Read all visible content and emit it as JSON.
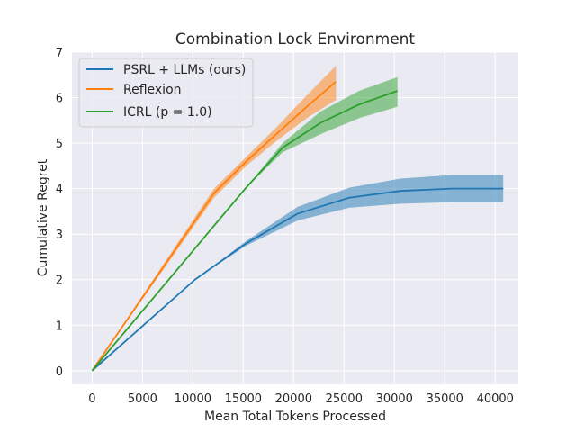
{
  "chart_data": {
    "type": "line",
    "title": "Combination Lock Environment",
    "xlabel": "Mean Total Tokens Processed",
    "ylabel": "Cumulative Regret",
    "xlim": [
      -2000,
      42300
    ],
    "ylim": [
      -0.3,
      7.0
    ],
    "xticks": [
      0,
      5000,
      10000,
      15000,
      20000,
      25000,
      30000,
      35000,
      40000
    ],
    "yticks": [
      0,
      1,
      2,
      3,
      4,
      5,
      6,
      7
    ],
    "grid": true,
    "legend_position": "top-left",
    "series": [
      {
        "name": "PSRL + LLMs (ours)",
        "color": "#1f77b4",
        "x": [
          0,
          10200,
          15300,
          20400,
          25500,
          30600,
          35700,
          40800
        ],
        "y": [
          0,
          2.0,
          2.8,
          3.45,
          3.8,
          3.95,
          4.0,
          4.0
        ],
        "lower": [
          0,
          2.0,
          2.75,
          3.3,
          3.58,
          3.67,
          3.7,
          3.7
        ],
        "upper": [
          0,
          2.0,
          2.85,
          3.6,
          4.02,
          4.22,
          4.3,
          4.3
        ]
      },
      {
        "name": "Reflexion",
        "color": "#ff7f0e",
        "x": [
          0,
          12100,
          15300,
          18300,
          21300,
          24200
        ],
        "y": [
          0,
          3.9,
          4.6,
          5.2,
          5.8,
          6.35
        ],
        "lower": [
          0,
          3.8,
          4.5,
          5.05,
          5.55,
          5.95
        ],
        "upper": [
          0,
          4.0,
          4.7,
          5.35,
          6.05,
          6.7
        ]
      },
      {
        "name": "ICRL ($p = 1.0$)",
        "color": "#2ca02c",
        "x": [
          0,
          15200,
          18900,
          22700,
          26500,
          30300
        ],
        "y": [
          0,
          4.0,
          4.9,
          5.45,
          5.85,
          6.15
        ],
        "lower": [
          0,
          4.0,
          4.8,
          5.2,
          5.55,
          5.8
        ],
        "upper": [
          0,
          4.0,
          5.0,
          5.7,
          6.15,
          6.45
        ]
      }
    ],
    "legend_labels": [
      "PSRL + LLMs (ours)",
      "Reflexion",
      "ICRL (p = 1.0)"
    ]
  }
}
